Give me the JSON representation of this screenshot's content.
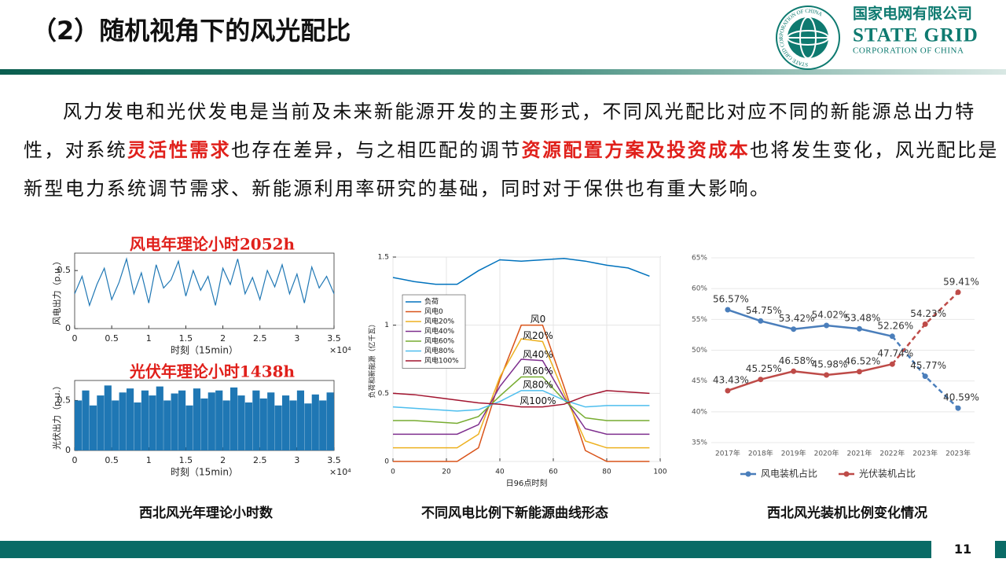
{
  "header": {
    "title": "（2）随机视角下的风光配比",
    "logo": {
      "name_cn": "国家电网有限公司",
      "name_en": "STATE GRID",
      "name_en_sub": "CORPORATION OF CHINA",
      "ring_text": "STATE GRID CORPORATION OF CHINA"
    }
  },
  "body": {
    "parts": [
      {
        "text": "风力发电和光伏发电是当前及未来新能源开发的主要形式，不同风光配比对应不同的新能源总出力特性，对系统",
        "emphasis": false
      },
      {
        "text": "灵活性需求",
        "emphasis": true
      },
      {
        "text": "也存在差异，与之相匹配的调节",
        "emphasis": false
      },
      {
        "text": "资源配置方案及投资成本",
        "emphasis": true
      },
      {
        "text": "也将发生变化，风光配比是新型电力系统调节需求、新能源利用率研究的基础，同时对于保供也有重大影响。",
        "emphasis": false
      }
    ]
  },
  "figures": [
    {
      "caption": "西北风光年理论小时数",
      "charts": [
        {
          "type": "line",
          "title": "风电年理论小时2052h",
          "xlabel": "时刻（15min）",
          "ylabel": "风电出力（p.u.）",
          "x_exponent_label": "×10⁴",
          "color": "#1f77b4",
          "x": [
            0,
            0.1,
            0.2,
            0.3,
            0.4,
            0.5,
            0.6,
            0.7,
            0.8,
            0.9,
            1.0,
            1.1,
            1.2,
            1.3,
            1.4,
            1.5,
            1.6,
            1.7,
            1.8,
            1.9,
            2.0,
            2.1,
            2.2,
            2.3,
            2.4,
            2.5,
            2.6,
            2.7,
            2.8,
            2.9,
            3.0,
            3.1,
            3.2,
            3.3,
            3.4,
            3.5
          ],
          "values": [
            0.3,
            0.45,
            0.2,
            0.38,
            0.52,
            0.25,
            0.4,
            0.6,
            0.3,
            0.48,
            0.22,
            0.55,
            0.35,
            0.42,
            0.58,
            0.28,
            0.5,
            0.33,
            0.45,
            0.2,
            0.52,
            0.38,
            0.6,
            0.3,
            0.44,
            0.25,
            0.5,
            0.36,
            0.55,
            0.3,
            0.47,
            0.22,
            0.53,
            0.35,
            0.45,
            0.3
          ],
          "xlim": [
            0,
            3.5
          ],
          "ylim": [
            0,
            0.65
          ],
          "xticks": [
            0,
            0.5,
            1,
            1.5,
            2,
            2.5,
            3,
            3.5
          ],
          "yticks": [
            0,
            0.5
          ]
        },
        {
          "type": "bar",
          "title": "光伏年理论小时1438h",
          "xlabel": "时刻（15min）",
          "ylabel": "光伏出力（p.u.）",
          "x_exponent_label": "×10⁴",
          "color": "#1f77b4",
          "x": [
            0,
            0.1,
            0.2,
            0.3,
            0.4,
            0.5,
            0.6,
            0.7,
            0.8,
            0.9,
            1.0,
            1.1,
            1.2,
            1.3,
            1.4,
            1.5,
            1.6,
            1.7,
            1.8,
            1.9,
            2.0,
            2.1,
            2.2,
            2.3,
            2.4,
            2.5,
            2.6,
            2.7,
            2.8,
            2.9,
            3.0,
            3.1,
            3.2,
            3.3,
            3.4,
            3.5
          ],
          "values": [
            0.5,
            0.6,
            0.45,
            0.55,
            0.65,
            0.5,
            0.58,
            0.62,
            0.48,
            0.6,
            0.55,
            0.64,
            0.5,
            0.57,
            0.6,
            0.45,
            0.62,
            0.52,
            0.58,
            0.6,
            0.5,
            0.63,
            0.55,
            0.48,
            0.6,
            0.52,
            0.58,
            0.45,
            0.55,
            0.5,
            0.6,
            0.47,
            0.56,
            0.5,
            0.58,
            0.52
          ],
          "xlim": [
            0,
            3.5
          ],
          "ylim": [
            0,
            0.7
          ],
          "xticks": [
            0,
            0.5,
            1,
            1.5,
            2,
            2.5,
            3,
            3.5
          ],
          "yticks": [
            0,
            0.5
          ]
        }
      ]
    },
    {
      "caption": "不同风电比例下新能源曲线形态",
      "charts": [
        {
          "type": "multiline",
          "xlabel": "日96点时刻",
          "ylabel": "负荷和新能源（亿千瓦）",
          "grid": true,
          "x": [
            0,
            8,
            16,
            24,
            32,
            40,
            48,
            56,
            64,
            72,
            80,
            88,
            96
          ],
          "xlim": [
            0,
            100
          ],
          "ylim": [
            0,
            1.5
          ],
          "xticks": [
            0,
            20,
            40,
            60,
            80,
            100
          ],
          "yticks": [
            0,
            0.5,
            1,
            1.5
          ],
          "series": [
            {
              "name": "负荷",
              "color": "#0072bd",
              "values": [
                1.35,
                1.32,
                1.3,
                1.3,
                1.4,
                1.48,
                1.47,
                1.48,
                1.49,
                1.47,
                1.44,
                1.42,
                1.36
              ]
            },
            {
              "name": "风电0",
              "label": "风0",
              "color": "#d95319",
              "values": [
                0,
                0,
                0,
                0,
                0.1,
                0.6,
                1.0,
                1.0,
                0.55,
                0.08,
                0,
                0,
                0
              ]
            },
            {
              "name": "风电20%",
              "label": "风20%",
              "color": "#edb120",
              "values": [
                0.1,
                0.1,
                0.1,
                0.1,
                0.2,
                0.62,
                0.9,
                0.88,
                0.5,
                0.15,
                0.1,
                0.1,
                0.1
              ]
            },
            {
              "name": "风电40%",
              "label": "风40%",
              "color": "#7e2f8e",
              "values": [
                0.2,
                0.2,
                0.2,
                0.2,
                0.27,
                0.55,
                0.75,
                0.74,
                0.47,
                0.24,
                0.2,
                0.2,
                0.2
              ]
            },
            {
              "name": "风电60%",
              "label": "风60%",
              "color": "#77ac30",
              "values": [
                0.3,
                0.3,
                0.29,
                0.28,
                0.33,
                0.48,
                0.62,
                0.62,
                0.45,
                0.32,
                0.3,
                0.3,
                0.3
              ]
            },
            {
              "name": "风电80%",
              "label": "风80%",
              "color": "#4dbeee",
              "values": [
                0.4,
                0.39,
                0.38,
                0.37,
                0.38,
                0.44,
                0.52,
                0.52,
                0.45,
                0.4,
                0.41,
                0.41,
                0.41
              ]
            },
            {
              "name": "风电100%",
              "label": "风100%",
              "color": "#a2142f",
              "values": [
                0.5,
                0.49,
                0.47,
                0.45,
                0.43,
                0.42,
                0.4,
                0.4,
                0.42,
                0.48,
                0.52,
                0.51,
                0.5
              ]
            }
          ]
        }
      ]
    },
    {
      "caption": "西北风光装机比例变化情况",
      "charts": [
        {
          "type": "line",
          "grid": true,
          "legend": "bottom",
          "categories": [
            "2017年",
            "2018年",
            "2019年",
            "2020年",
            "2021年",
            "2022年",
            "2023年",
            "2023年"
          ],
          "ylim": [
            35,
            65
          ],
          "yticks": [
            {
              "value": 35,
              "label": "35%"
            },
            {
              "value": 40,
              "label": "40%"
            },
            {
              "value": 45,
              "label": "45%"
            },
            {
              "value": 50,
              "label": "50%"
            },
            {
              "value": 55,
              "label": "55%"
            },
            {
              "value": 60,
              "label": "60%"
            },
            {
              "value": 65,
              "label": "65%"
            }
          ],
          "series": [
            {
              "name": "风电装机占比",
              "color": "#4a7ebb",
              "values": [
                56.57,
                54.75,
                53.42,
                54.02,
                53.48,
                52.26,
                45.77,
                40.59
              ],
              "value_labels": [
                "56.57%",
                "54.75%",
                "53.42%",
                "54.02%",
                "53.48%",
                "52.26%",
                "45.77%",
                "40.59%"
              ]
            },
            {
              "name": "光伏装机占比",
              "color": "#be4b48",
              "values": [
                43.43,
                45.25,
                46.58,
                45.98,
                46.52,
                47.74,
                54.23,
                59.41
              ],
              "value_labels": [
                "43.43%",
                "45.25%",
                "46.58%",
                "45.98%",
                "46.52%",
                "47.74%",
                "54.23%",
                "59.41%"
              ]
            }
          ]
        }
      ]
    }
  ],
  "footer": {
    "page_number": "11"
  }
}
